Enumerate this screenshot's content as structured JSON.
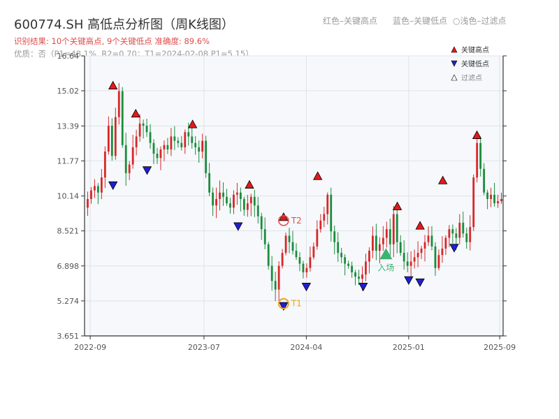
{
  "header": {
    "title": "600774.SH 高低点分析图（周K线图）",
    "result_line": "识别结果: 10个关键高点, 9个关键低点  准确度: 89.6%",
    "quality_line": "优质：否（P1=48.1%, R2=0.70；T1=2024-02-08 P1=5.15）",
    "legend_red": "红色–关键高点",
    "legend_blue": "蓝色–关键低点",
    "legend_light": "○浅色–过滤点"
  },
  "chart_data": {
    "type": "candlestick",
    "title": "600774.SH 高低点分析图（周K线图）",
    "ylim": [
      3.651,
      16.64
    ],
    "yticks": [
      "3.651",
      "5.274",
      "6.898",
      "8.521",
      "10.14",
      "11.77",
      "13.39",
      "15.02",
      "16.64"
    ],
    "xticks": [
      "2022-09",
      "2023-07",
      "2024-04",
      "2025-01",
      "2025-09"
    ],
    "legend": {
      "placement": "top-right",
      "items": [
        "关键高点",
        "关键低点",
        "过滤点"
      ]
    },
    "colors": {
      "up": "#d62728",
      "down": "#1a8c3c",
      "high_marker": "#e31a1c",
      "low_marker": "#1f1fd0",
      "t_marker": "#f0a020",
      "entry": "#3cb371"
    },
    "key_highs": [
      {
        "date": "2022-11",
        "value": 15.1
      },
      {
        "date": "2023-01",
        "value": 13.8
      },
      {
        "date": "2023-06",
        "value": 13.3
      },
      {
        "date": "2023-11",
        "value": 10.5
      },
      {
        "date": "2024-02",
        "value": 9.0
      },
      {
        "date": "2024-05",
        "value": 10.9
      },
      {
        "date": "2024-12",
        "value": 9.5
      },
      {
        "date": "2025-02",
        "value": 8.6
      },
      {
        "date": "2025-04",
        "value": 10.7
      },
      {
        "date": "2025-07",
        "value": 12.8
      }
    ],
    "key_lows": [
      {
        "date": "2022-11",
        "value": 10.8
      },
      {
        "date": "2023-02",
        "value": 11.5
      },
      {
        "date": "2023-10",
        "value": 8.9
      },
      {
        "date": "2024-02",
        "value": 5.2
      },
      {
        "date": "2024-04",
        "value": 6.1
      },
      {
        "date": "2024-09",
        "value": 6.1
      },
      {
        "date": "2025-01",
        "value": 6.4
      },
      {
        "date": "2025-02",
        "value": 6.3
      },
      {
        "date": "2025-05",
        "value": 7.9
      }
    ],
    "annotations": [
      {
        "label": "T1",
        "date": "2024-02",
        "value": 5.15
      },
      {
        "label": "T2",
        "date": "2024-02",
        "value": 9.0
      },
      {
        "label": "入场",
        "date": "2024-11",
        "value": 7.4
      }
    ],
    "weekly_closes": [
      10.0,
      10.4,
      10.6,
      10.3,
      11.0,
      12.2,
      13.4,
      12.0,
      13.8,
      15.0,
      12.5,
      11.2,
      11.6,
      12.4,
      12.9,
      13.5,
      13.4,
      13.1,
      12.6,
      12.1,
      11.9,
      12.3,
      12.5,
      12.3,
      12.9,
      12.7,
      12.6,
      12.4,
      13.1,
      12.9,
      12.6,
      12.4,
      12.2,
      12.7,
      11.2,
      10.3,
      9.7,
      10.0,
      10.3,
      10.1,
      9.8,
      9.6,
      10.2,
      10.3,
      10.0,
      9.5,
      9.8,
      10.1,
      9.7,
      9.2,
      8.6,
      7.9,
      6.9,
      6.2,
      5.8,
      6.9,
      7.5,
      8.3,
      8.0,
      7.6,
      7.3,
      7.0,
      6.6,
      6.8,
      7.3,
      7.8,
      8.6,
      9.0,
      9.3,
      10.2,
      8.5,
      8.0,
      7.5,
      7.3,
      7.0,
      6.9,
      6.6,
      6.4,
      6.3,
      6.5,
      7.1,
      7.6,
      8.3,
      7.6,
      7.9,
      8.2,
      8.6,
      7.9,
      9.3,
      8.0,
      7.5,
      7.1,
      6.9,
      7.1,
      7.3,
      7.5,
      7.7,
      8.0,
      8.3,
      7.8,
      6.8,
      7.4,
      7.7,
      8.2,
      8.6,
      8.4,
      8.2,
      8.9,
      8.4,
      8.0,
      8.7,
      11.0,
      12.6,
      11.4,
      10.3,
      10.0,
      10.2,
      9.8,
      9.9,
      10.0
    ]
  }
}
